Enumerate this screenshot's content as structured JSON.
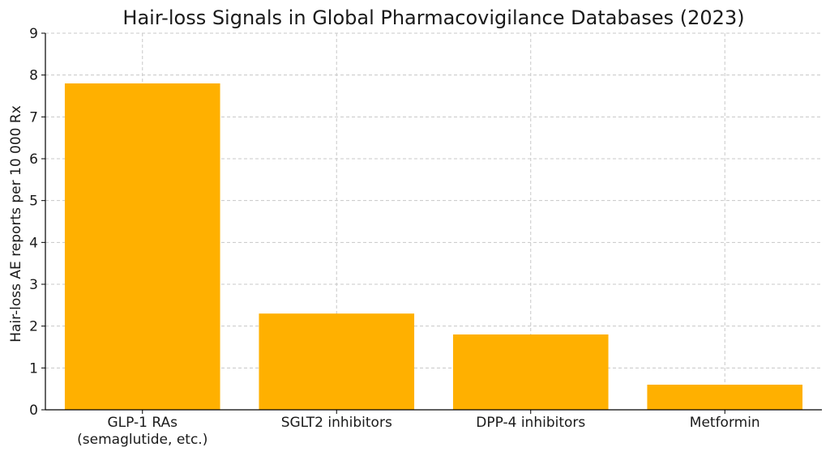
{
  "chart_data": {
    "type": "bar",
    "title": "Hair-loss Signals in Global Pharmacovigilance Databases (2023)",
    "xlabel": "",
    "ylabel": "Hair-loss AE reports per 10 000 Rx",
    "categories": [
      [
        "GLP-1 RAs",
        "(semaglutide, etc.)"
      ],
      [
        "SGLT2 inhibitors"
      ],
      [
        "DPP-4 inhibitors"
      ],
      [
        "Metformin"
      ]
    ],
    "values": [
      7.8,
      2.3,
      1.8,
      0.6
    ],
    "ylim": [
      0,
      9
    ],
    "yticks": [
      0,
      1,
      2,
      3,
      4,
      5,
      6,
      7,
      8,
      9
    ],
    "grid": true,
    "bar_color": "#FFB000"
  }
}
